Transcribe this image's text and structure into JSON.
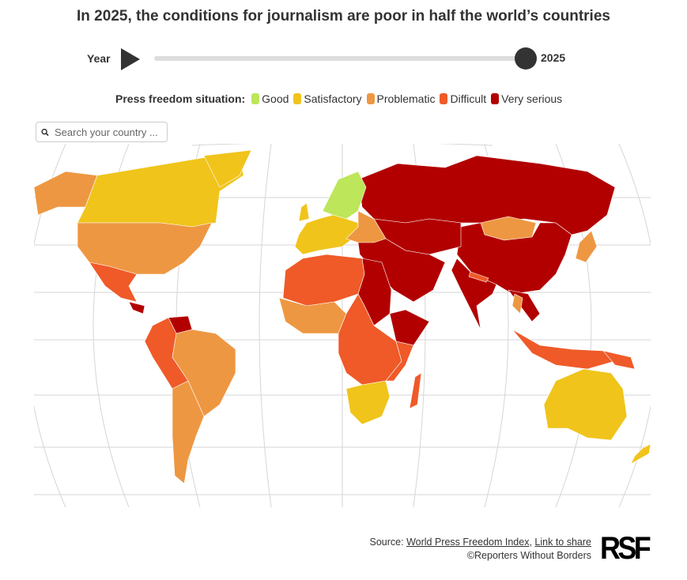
{
  "title": "In 2025, the conditions for journalism are poor in half the world’s countries",
  "slider": {
    "label": "Year",
    "value": "2025",
    "progress": 1.0
  },
  "legend": {
    "title": "Press freedom situation:",
    "items": [
      {
        "key": "good",
        "label": "Good",
        "color": "#bde65a"
      },
      {
        "key": "satisfactory",
        "label": "Satisfactory",
        "color": "#f0c41b"
      },
      {
        "key": "problematic",
        "label": "Problematic",
        "color": "#ee9742"
      },
      {
        "key": "difficult",
        "label": "Difficult",
        "color": "#ef5a28"
      },
      {
        "key": "very_serious",
        "label": "Very serious",
        "color": "#b20000"
      }
    ]
  },
  "search": {
    "placeholder": "Search your country ..."
  },
  "footer": {
    "source_prefix": "Source: ",
    "source_link": "World Press Freedom Index",
    "separator": ", ",
    "share_link": "Link to share",
    "copyright": "©Reporters Without Borders",
    "logo": "RSF"
  }
}
